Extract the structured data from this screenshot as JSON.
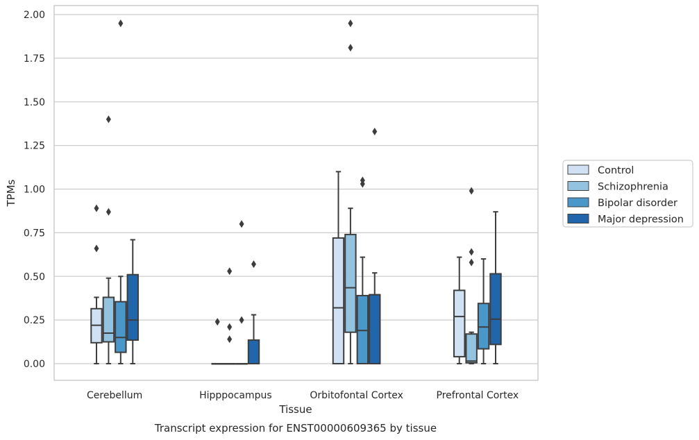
{
  "chart_data": {
    "type": "box",
    "title": "",
    "caption": "Transcript expression for ENST00000609365 by tissue",
    "xlabel": "Tissue",
    "ylabel": "TPMs",
    "ylim": [
      -0.1,
      2.05
    ],
    "yticks": [
      0.0,
      0.25,
      0.5,
      0.75,
      1.0,
      1.25,
      1.5,
      1.75,
      2.0
    ],
    "ytick_labels": [
      "0.00",
      "0.25",
      "0.50",
      "0.75",
      "1.00",
      "1.25",
      "1.50",
      "1.75",
      "2.00"
    ],
    "grid": true,
    "legend_position": "right",
    "categories": [
      "Cerebellum",
      "Hipppocampus",
      "Orbitofontal Cortex",
      "Prefrontal Cortex"
    ],
    "series": [
      {
        "name": "Control",
        "color": "#cfe1f2",
        "boxes": [
          {
            "whislo": 0.0,
            "q1": 0.12,
            "med": 0.22,
            "q3": 0.315,
            "whishi": 0.38,
            "fliers": [
              0.66,
              0.89
            ]
          },
          {
            "whislo": 0.0,
            "q1": 0.0,
            "med": 0.0,
            "q3": 0.0,
            "whishi": 0.0,
            "fliers": [
              0.24
            ]
          },
          {
            "whislo": 0.0,
            "q1": 0.0,
            "med": 0.32,
            "q3": 0.72,
            "whishi": 1.1,
            "fliers": []
          },
          {
            "whislo": 0.0,
            "q1": 0.04,
            "med": 0.27,
            "q3": 0.42,
            "whishi": 0.61,
            "fliers": []
          }
        ]
      },
      {
        "name": "Schizophrenia",
        "color": "#93c3df",
        "boxes": [
          {
            "whislo": 0.0,
            "q1": 0.125,
            "med": 0.175,
            "q3": 0.38,
            "whishi": 0.49,
            "fliers": [
              0.87,
              1.4
            ]
          },
          {
            "whislo": 0.0,
            "q1": 0.0,
            "med": 0.0,
            "q3": 0.0,
            "whishi": 0.0,
            "fliers": [
              0.14,
              0.21,
              0.53
            ]
          },
          {
            "whislo": 0.0,
            "q1": 0.18,
            "med": 0.435,
            "q3": 0.74,
            "whishi": 0.89,
            "fliers": [
              1.81,
              1.95
            ]
          },
          {
            "whislo": 0.0,
            "q1": 0.005,
            "med": 0.015,
            "q3": 0.17,
            "whishi": 0.18,
            "fliers": [
              0.58,
              0.64,
              0.99
            ]
          }
        ]
      },
      {
        "name": "Bipolar disorder",
        "color": "#4a98c9",
        "boxes": [
          {
            "whislo": 0.0,
            "q1": 0.065,
            "med": 0.15,
            "q3": 0.355,
            "whishi": 0.5,
            "fliers": [
              1.95
            ]
          },
          {
            "whislo": 0.0,
            "q1": 0.0,
            "med": 0.0,
            "q3": 0.0,
            "whishi": 0.0,
            "fliers": [
              0.25,
              0.8
            ]
          },
          {
            "whislo": 0.0,
            "q1": 0.0,
            "med": 0.19,
            "q3": 0.39,
            "whishi": 0.61,
            "fliers": [
              1.03,
              1.05
            ]
          },
          {
            "whislo": 0.0,
            "q1": 0.085,
            "med": 0.21,
            "q3": 0.345,
            "whishi": 0.6,
            "fliers": []
          }
        ]
      },
      {
        "name": "Major depression",
        "color": "#2165ab",
        "boxes": [
          {
            "whislo": 0.0,
            "q1": 0.135,
            "med": 0.25,
            "q3": 0.51,
            "whishi": 0.71,
            "fliers": []
          },
          {
            "whislo": 0.0,
            "q1": 0.0,
            "med": 0.0,
            "q3": 0.135,
            "whishi": 0.28,
            "fliers": [
              0.57
            ]
          },
          {
            "whislo": 0.0,
            "q1": 0.0,
            "med": 0.395,
            "q3": 0.395,
            "whishi": 0.52,
            "fliers": [
              1.33
            ]
          },
          {
            "whislo": 0.0,
            "q1": 0.11,
            "med": 0.255,
            "q3": 0.515,
            "whishi": 0.87,
            "fliers": []
          }
        ]
      }
    ]
  }
}
